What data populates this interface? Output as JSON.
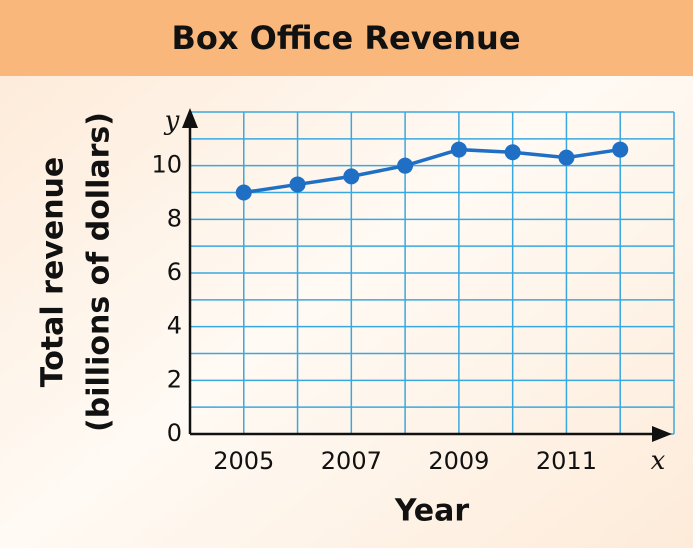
{
  "chart_data": {
    "type": "line",
    "title": "Box Office Revenue",
    "x_label": "Year",
    "y_label": [
      "Total revenue",
      "(billions of dollars)"
    ],
    "x_axis_var": "x",
    "y_axis_var": "y",
    "x": [
      2005,
      2006,
      2007,
      2008,
      2009,
      2010,
      2011,
      2012
    ],
    "values": [
      9.0,
      9.3,
      9.6,
      10.0,
      10.6,
      10.5,
      10.3,
      10.6
    ],
    "color": "#1f6fc4",
    "grid_color": "#3aa8e0",
    "xlim": [
      2004,
      2013
    ],
    "ylim": [
      0,
      12
    ],
    "xticks": [
      2005,
      2007,
      2009,
      2011
    ],
    "yticks": [
      0,
      2,
      4,
      6,
      8,
      10
    ],
    "xgrid": [
      2004,
      2005,
      2006,
      2007,
      2008,
      2009,
      2010,
      2011,
      2012,
      2013
    ],
    "ygrid": [
      0,
      1,
      2,
      3,
      4,
      5,
      6,
      7,
      8,
      9,
      10,
      11,
      12
    ]
  }
}
